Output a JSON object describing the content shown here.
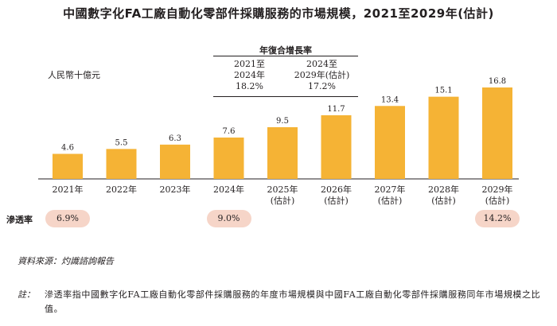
{
  "title": "中國數字化FA工廠自動化零部件採購服務的市場規模，2021至2029年(估計)",
  "unit": "人民幣十億元",
  "cagr": {
    "header": "年復合增長率",
    "periods": [
      {
        "range": "2021至",
        "range2": "2024年",
        "value": "18.2%"
      },
      {
        "range": "2024至",
        "range2": "2029年(估計)",
        "value": "17.2%"
      }
    ]
  },
  "chart_data": {
    "type": "bar",
    "title": "中國數字化FA工廠自動化零部件採購服務的市場規模，2021至2029年(估計)",
    "ylabel": "人民幣十億元",
    "categories": [
      "2021年",
      "2022年",
      "2023年",
      "2024年",
      "2025年",
      "2026年",
      "2027年",
      "2028年",
      "2029年"
    ],
    "category_notes": [
      "",
      "",
      "",
      "",
      "(估計)",
      "(估計)",
      "(估計)",
      "(估計)",
      "(估計)"
    ],
    "values": [
      4.6,
      5.5,
      6.3,
      7.6,
      9.5,
      11.7,
      13.4,
      15.1,
      16.8
    ],
    "value_labels": [
      "4.6",
      "5.5",
      "6.3",
      "7.6",
      "9.5",
      "11.7",
      "13.4",
      "15.1",
      "16.8"
    ],
    "ylim": [
      0,
      16.8
    ],
    "bar_color": "#f5b335"
  },
  "penetration": {
    "label": "滲透率",
    "items": [
      {
        "year_index": 0,
        "value": "6.9%"
      },
      {
        "year_index": 3,
        "value": "9.0%"
      },
      {
        "year_index": 8,
        "value": "14.2%"
      }
    ]
  },
  "source": "資料來源：灼識諮詢報告",
  "note_label": "註：",
  "note": "滲透率指中國數字化FA工廠自動化零部件採購服務的年度市場規模與中國FA工廠自動化零部件採購服務同年市場規模之比值。"
}
